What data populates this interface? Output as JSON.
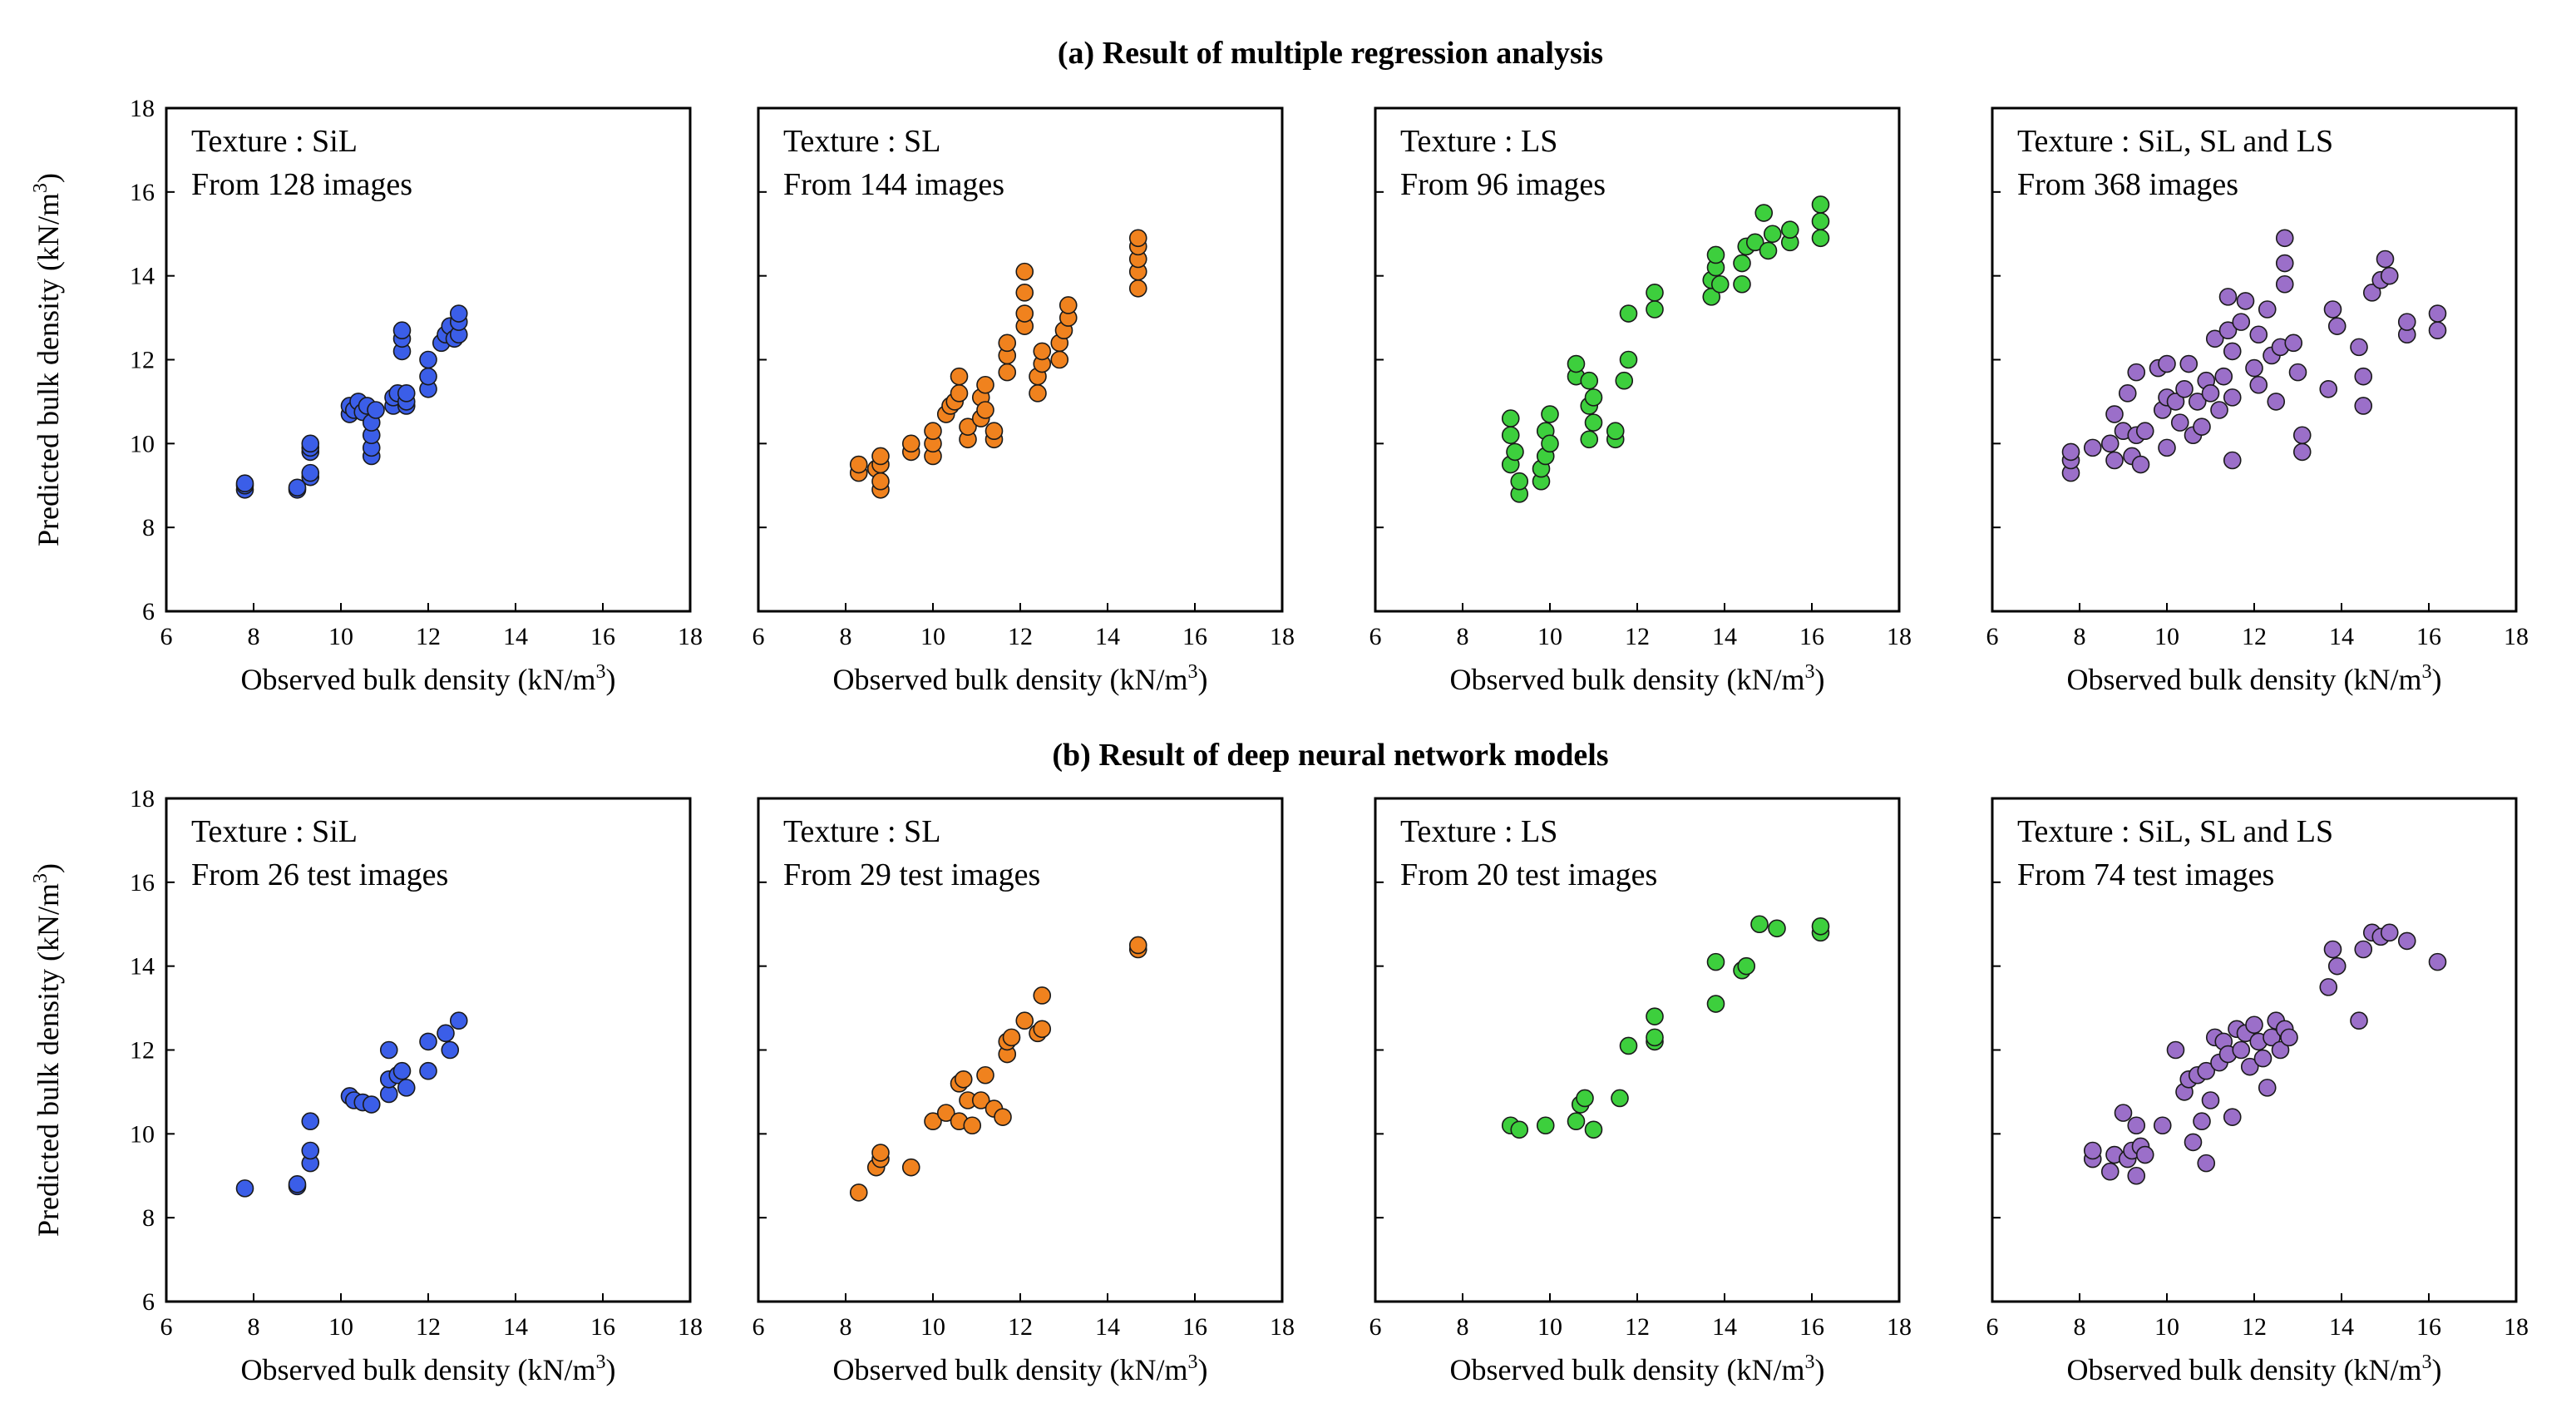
{
  "figure": {
    "section_a_title": "(a) Result of multiple  regression analysis",
    "section_b_title": "(b) Result of deep neural network models",
    "xlabel_main": "Observed bulk density (kN/m",
    "ylabel_main": "Predicted bulk density (kN/m",
    "unit_close": ")",
    "unit_exp": "3",
    "colors": {
      "SiL": "#3b5ee8",
      "SL": "#f0821e",
      "LS": "#3dcf3d",
      "ALL": "#9b6fc9",
      "marker_edge": "#1a1a1a"
    }
  },
  "chart_data": [
    {
      "type": "scatter",
      "row": "a",
      "group": "SiL",
      "title": "Texture : SiL",
      "subtitle": "From 128 images",
      "xlabel": "Observed bulk density (kN/m3)",
      "ylabel": "Predicted bulk density (kN/m3)",
      "xlim": [
        6,
        18
      ],
      "ylim": [
        6,
        18
      ],
      "xticks": [
        6,
        8,
        10,
        12,
        14,
        16,
        18
      ],
      "yticks": [
        6,
        8,
        10,
        12,
        14,
        16,
        18
      ],
      "x": [
        7.8,
        7.8,
        7.8,
        9.0,
        9.0,
        9.3,
        9.3,
        9.3,
        9.3,
        9.3,
        10.2,
        10.2,
        10.3,
        10.4,
        10.5,
        10.6,
        10.7,
        10.7,
        10.7,
        10.7,
        10.8,
        11.2,
        11.2,
        11.3,
        11.4,
        11.4,
        11.4,
        11.5,
        11.5,
        11.5,
        12.0,
        12.0,
        12.0,
        12.3,
        12.4,
        12.5,
        12.6,
        12.7,
        12.7,
        12.7
      ],
      "y": [
        8.9,
        9.0,
        9.05,
        8.9,
        8.95,
        9.2,
        9.3,
        9.8,
        9.9,
        10.0,
        10.7,
        10.9,
        10.8,
        11.0,
        10.75,
        10.9,
        9.7,
        9.9,
        10.2,
        10.5,
        10.8,
        10.9,
        11.1,
        11.2,
        12.2,
        12.5,
        12.7,
        10.9,
        11.0,
        11.2,
        11.3,
        11.6,
        12.0,
        12.4,
        12.6,
        12.8,
        12.5,
        12.6,
        12.9,
        13.1
      ]
    },
    {
      "type": "scatter",
      "row": "a",
      "group": "SL",
      "title": "Texture : SL",
      "subtitle": "From 144 images",
      "xlabel": "Observed bulk density (kN/m3)",
      "ylabel": "Predicted bulk density (kN/m3)",
      "xlim": [
        6,
        18
      ],
      "ylim": [
        6,
        18
      ],
      "xticks": [
        6,
        8,
        10,
        12,
        14,
        16,
        18
      ],
      "yticks": [
        6,
        8,
        10,
        12,
        14,
        16,
        18
      ],
      "x": [
        8.3,
        8.3,
        8.7,
        8.8,
        8.8,
        8.8,
        8.8,
        9.5,
        9.5,
        10.0,
        10.0,
        10.0,
        10.3,
        10.4,
        10.5,
        10.6,
        10.6,
        10.8,
        10.8,
        11.1,
        11.1,
        11.2,
        11.2,
        11.4,
        11.4,
        11.7,
        11.7,
        11.7,
        12.1,
        12.1,
        12.1,
        12.1,
        12.4,
        12.4,
        12.5,
        12.5,
        12.9,
        12.9,
        13.0,
        13.1,
        13.1,
        14.7,
        14.7,
        14.7,
        14.7,
        14.7
      ],
      "y": [
        9.3,
        9.5,
        9.4,
        8.9,
        9.1,
        9.5,
        9.7,
        9.8,
        10.0,
        9.7,
        10.0,
        10.3,
        10.7,
        10.9,
        11.0,
        11.2,
        11.6,
        10.1,
        10.4,
        10.6,
        11.1,
        10.8,
        11.4,
        10.1,
        10.3,
        11.7,
        12.1,
        12.4,
        12.8,
        13.1,
        13.6,
        14.1,
        11.2,
        11.6,
        11.9,
        12.2,
        12.0,
        12.4,
        12.7,
        13.0,
        13.3,
        13.7,
        14.1,
        14.4,
        14.7,
        14.9
      ]
    },
    {
      "type": "scatter",
      "row": "a",
      "group": "LS",
      "title": "Texture : LS",
      "subtitle": "From 96 images",
      "xlabel": "Observed bulk density (kN/m3)",
      "ylabel": "Predicted bulk density (kN/m3)",
      "xlim": [
        6,
        18
      ],
      "ylim": [
        6,
        18
      ],
      "xticks": [
        6,
        8,
        10,
        12,
        14,
        16,
        18
      ],
      "yticks": [
        6,
        8,
        10,
        12,
        14,
        16,
        18
      ],
      "x": [
        9.1,
        9.1,
        9.1,
        9.2,
        9.3,
        9.3,
        9.8,
        9.8,
        9.9,
        9.9,
        10.0,
        10.0,
        10.6,
        10.6,
        10.9,
        10.9,
        10.9,
        11.0,
        11.0,
        11.5,
        11.5,
        11.7,
        11.8,
        11.8,
        12.4,
        12.4,
        13.7,
        13.7,
        13.8,
        13.8,
        13.9,
        14.4,
        14.4,
        14.5,
        14.7,
        14.9,
        15.0,
        15.1,
        15.5,
        15.5,
        16.2,
        16.2,
        16.2
      ],
      "y": [
        9.5,
        10.2,
        10.6,
        9.8,
        8.8,
        9.1,
        9.1,
        9.4,
        9.7,
        10.3,
        10.0,
        10.7,
        11.6,
        11.9,
        10.1,
        10.9,
        11.5,
        10.5,
        11.1,
        10.1,
        10.3,
        11.5,
        12.0,
        13.1,
        13.2,
        13.6,
        13.5,
        13.9,
        14.2,
        14.5,
        13.8,
        13.8,
        14.3,
        14.7,
        14.8,
        15.5,
        14.6,
        15.0,
        14.8,
        15.1,
        14.9,
        15.3,
        15.7
      ]
    },
    {
      "type": "scatter",
      "row": "a",
      "group": "ALL",
      "title": "Texture : SiL, SL and LS",
      "subtitle": "From 368 images",
      "xlabel": "Observed bulk density (kN/m3)",
      "ylabel": "Predicted bulk density (kN/m3)",
      "xlim": [
        6,
        18
      ],
      "ylim": [
        6,
        18
      ],
      "xticks": [
        6,
        8,
        10,
        12,
        14,
        16,
        18
      ],
      "yticks": [
        6,
        8,
        10,
        12,
        14,
        16,
        18
      ],
      "x": [
        7.8,
        7.8,
        7.8,
        8.3,
        8.7,
        8.8,
        8.8,
        9.0,
        9.1,
        9.2,
        9.3,
        9.3,
        9.4,
        9.5,
        9.8,
        9.9,
        10.0,
        10.0,
        10.0,
        10.2,
        10.3,
        10.4,
        10.5,
        10.6,
        10.7,
        10.8,
        10.9,
        11.0,
        11.1,
        11.2,
        11.3,
        11.4,
        11.4,
        11.5,
        11.5,
        11.5,
        11.7,
        11.8,
        12.0,
        12.1,
        12.1,
        12.3,
        12.4,
        12.5,
        12.6,
        12.7,
        12.7,
        12.7,
        12.9,
        13.0,
        13.1,
        13.1,
        13.7,
        13.8,
        13.9,
        14.4,
        14.5,
        14.5,
        14.7,
        14.9,
        15.0,
        15.1,
        15.5,
        15.5,
        16.2,
        16.2
      ],
      "y": [
        9.3,
        9.6,
        9.8,
        9.9,
        10.0,
        9.6,
        10.7,
        10.3,
        11.2,
        9.7,
        10.2,
        11.7,
        9.5,
        10.3,
        11.8,
        10.8,
        9.9,
        11.1,
        11.9,
        11.0,
        10.5,
        11.3,
        11.9,
        10.2,
        11.0,
        10.4,
        11.5,
        11.2,
        12.5,
        10.8,
        11.6,
        12.7,
        13.5,
        9.6,
        11.1,
        12.2,
        12.9,
        13.4,
        11.8,
        11.4,
        12.6,
        13.2,
        12.1,
        11.0,
        12.3,
        13.8,
        14.3,
        14.9,
        12.4,
        11.7,
        9.8,
        10.2,
        11.3,
        13.2,
        12.8,
        12.3,
        10.9,
        11.6,
        13.6,
        13.9,
        14.4,
        14.0,
        12.6,
        12.9,
        12.7,
        13.1
      ]
    },
    {
      "type": "scatter",
      "row": "b",
      "group": "SiL",
      "title": "Texture : SiL",
      "subtitle": "From 26 test images",
      "xlabel": "Observed bulk density (kN/m3)",
      "ylabel": "Predicted bulk density (kN/m3)",
      "xlim": [
        6,
        18
      ],
      "ylim": [
        6,
        18
      ],
      "xticks": [
        6,
        8,
        10,
        12,
        14,
        16,
        18
      ],
      "yticks": [
        6,
        8,
        10,
        12,
        14,
        16,
        18
      ],
      "x": [
        7.8,
        9.0,
        9.0,
        9.3,
        9.3,
        9.3,
        10.2,
        10.3,
        10.5,
        10.7,
        11.1,
        11.1,
        11.1,
        11.3,
        11.4,
        11.5,
        12.0,
        12.0,
        12.4,
        12.5,
        12.7
      ],
      "y": [
        8.7,
        8.75,
        8.8,
        9.3,
        9.6,
        10.3,
        10.9,
        10.8,
        10.75,
        10.7,
        10.95,
        11.3,
        12.0,
        11.4,
        11.5,
        11.1,
        11.5,
        12.2,
        12.4,
        12.0,
        12.7
      ]
    },
    {
      "type": "scatter",
      "row": "b",
      "group": "SL",
      "title": "Texture : SL",
      "subtitle": "From 29 test images",
      "xlabel": "Observed bulk density (kN/m3)",
      "ylabel": "Predicted bulk density (kN/m3)",
      "xlim": [
        6,
        18
      ],
      "ylim": [
        6,
        18
      ],
      "xticks": [
        6,
        8,
        10,
        12,
        14,
        16,
        18
      ],
      "yticks": [
        6,
        8,
        10,
        12,
        14,
        16,
        18
      ],
      "x": [
        8.3,
        8.7,
        8.8,
        8.8,
        9.5,
        10.0,
        10.3,
        10.6,
        10.6,
        10.7,
        10.8,
        10.9,
        11.1,
        11.2,
        11.4,
        11.6,
        11.7,
        11.7,
        11.8,
        12.1,
        12.4,
        12.5,
        12.5,
        14.7,
        14.7
      ],
      "y": [
        8.6,
        9.2,
        9.4,
        9.55,
        9.2,
        10.3,
        10.5,
        10.3,
        11.2,
        11.3,
        10.8,
        10.2,
        10.8,
        11.4,
        10.6,
        10.4,
        11.9,
        12.2,
        12.3,
        12.7,
        12.4,
        12.5,
        13.3,
        14.4,
        14.5
      ]
    },
    {
      "type": "scatter",
      "row": "b",
      "group": "LS",
      "title": "Texture : LS",
      "subtitle": "From 20 test images",
      "xlabel": "Observed bulk density (kN/m3)",
      "ylabel": "Predicted bulk density (kN/m3)",
      "xlim": [
        6,
        18
      ],
      "ylim": [
        6,
        18
      ],
      "xticks": [
        6,
        8,
        10,
        12,
        14,
        16,
        18
      ],
      "yticks": [
        6,
        8,
        10,
        12,
        14,
        16,
        18
      ],
      "x": [
        9.1,
        9.3,
        9.9,
        10.6,
        10.7,
        10.8,
        11.0,
        11.6,
        11.8,
        12.4,
        12.4,
        12.4,
        13.8,
        13.8,
        14.4,
        14.5,
        14.8,
        15.2,
        16.2,
        16.2
      ],
      "y": [
        10.2,
        10.1,
        10.2,
        10.3,
        10.7,
        10.85,
        10.1,
        10.85,
        12.1,
        12.2,
        12.3,
        12.8,
        13.1,
        14.1,
        13.9,
        14.0,
        15.0,
        14.9,
        14.8,
        14.95
      ]
    },
    {
      "type": "scatter",
      "row": "b",
      "group": "ALL",
      "title": "Texture : SiL, SL and LS",
      "subtitle": "From 74 test images",
      "xlabel": "Observed bulk density (kN/m3)",
      "ylabel": "Predicted bulk density (kN/m3)",
      "xlim": [
        6,
        18
      ],
      "ylim": [
        6,
        18
      ],
      "xticks": [
        6,
        8,
        10,
        12,
        14,
        16,
        18
      ],
      "yticks": [
        6,
        8,
        10,
        12,
        14,
        16,
        18
      ],
      "x": [
        8.3,
        8.3,
        8.7,
        8.8,
        9.0,
        9.1,
        9.2,
        9.3,
        9.3,
        9.4,
        9.5,
        9.9,
        10.2,
        10.4,
        10.5,
        10.6,
        10.7,
        10.8,
        10.9,
        10.9,
        11.0,
        11.1,
        11.2,
        11.3,
        11.4,
        11.5,
        11.6,
        11.7,
        11.8,
        11.9,
        12.0,
        12.1,
        12.2,
        12.3,
        12.4,
        12.5,
        12.6,
        12.7,
        12.8,
        13.7,
        13.8,
        13.9,
        14.4,
        14.5,
        14.7,
        14.9,
        15.1,
        15.5,
        16.2
      ],
      "y": [
        9.4,
        9.6,
        9.1,
        9.5,
        10.5,
        9.4,
        9.6,
        9.0,
        10.2,
        9.7,
        9.5,
        10.2,
        12.0,
        11.0,
        11.3,
        9.8,
        11.4,
        10.3,
        9.3,
        11.5,
        10.8,
        12.3,
        11.7,
        12.2,
        11.9,
        10.4,
        12.5,
        12.0,
        12.4,
        11.6,
        12.6,
        12.2,
        11.8,
        11.1,
        12.3,
        12.7,
        12.0,
        12.5,
        12.3,
        13.5,
        14.4,
        14.0,
        12.7,
        14.4,
        14.8,
        14.7,
        14.8,
        14.6,
        14.1
      ]
    }
  ]
}
